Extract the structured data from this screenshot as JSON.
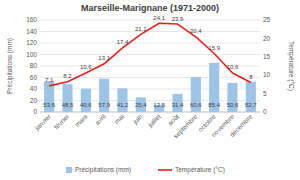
{
  "chart_data": {
    "type": "bar",
    "title": "Marseille-Marignane (1971-2000)",
    "y_label": "Précipitations (mm)",
    "y2_label": "Température (°C)",
    "categories": [
      "janvier",
      "février",
      "mars",
      "avril",
      "mai",
      "juin",
      "juillet",
      "août",
      "septembre",
      "octobre",
      "novembre",
      "décembre"
    ],
    "series": [
      {
        "name": "Précipitations (mm)",
        "type": "bar",
        "color": "#9dc3e6",
        "values": [
          53.6,
          48.5,
          40.6,
          57.9,
          41.2,
          25.4,
          12.5,
          31.4,
          60.6,
          85.4,
          50.6,
          52.7
        ],
        "value_labels": [
          "53,6",
          "48,5",
          "40,6",
          "57,9",
          "41,2",
          "25,4",
          "12,5",
          "31,4",
          "60,6",
          "85,4",
          "50,6",
          "52,7"
        ]
      },
      {
        "name": "Température (°C)",
        "type": "line",
        "axis": "y2",
        "color": "#e8211f",
        "values": [
          7.1,
          8.2,
          10.6,
          13.1,
          17.4,
          21.1,
          24.1,
          23.9,
          20.4,
          15.9,
          10.6,
          8
        ],
        "value_labels": [
          "7,1",
          "8,2",
          "10,6",
          "13,1",
          "17,4",
          "21,1",
          "24,1",
          "23,9",
          "20,4",
          "15,9",
          "10,6",
          "8"
        ]
      }
    ],
    "ylim": [
      0,
      160
    ],
    "yticks": [
      0,
      20,
      40,
      60,
      80,
      100,
      120,
      140,
      160
    ],
    "y2lim": [
      0,
      25
    ],
    "y2ticks": [
      0,
      5,
      10,
      15,
      20,
      25
    ],
    "grid": true,
    "data_labels": true,
    "legend": "bottom"
  }
}
